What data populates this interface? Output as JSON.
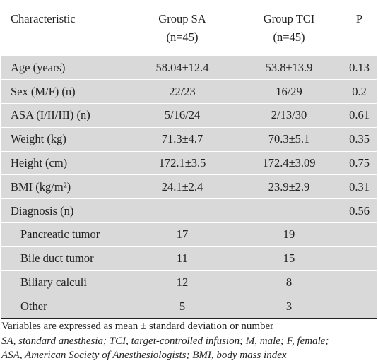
{
  "table": {
    "headers": {
      "characteristic": "Characteristic",
      "group_sa": "Group SA",
      "group_sa_n": "(n=45)",
      "group_tci": "Group TCI",
      "group_tci_n": "(n=45)",
      "p": "P"
    },
    "rows": [
      {
        "label": "Age (years)",
        "sa": "58.04±12.4",
        "tci": "53.8±13.9",
        "p": "0.13"
      },
      {
        "label": "Sex (M/F) (n)",
        "sa": "22/23",
        "tci": "16/29",
        "p": "0.2"
      },
      {
        "label": "ASA (I/II/III) (n)",
        "sa": "5/16/24",
        "tci": "2/13/30",
        "p": "0.61"
      },
      {
        "label": "Weight (kg)",
        "sa": "71.3±4.7",
        "tci": "70.3±5.1",
        "p": "0.35"
      },
      {
        "label": "Height (cm)",
        "sa": "172.1±3.5",
        "tci": "172.4±3.09",
        "p": "0.75"
      },
      {
        "label": "BMI (kg/m²)",
        "sa": "24.1±2.4",
        "tci": "23.9±2.9",
        "p": "0.31"
      },
      {
        "label": "Diagnosis (n)",
        "sa": "",
        "tci": "",
        "p": "0.56"
      },
      {
        "label": "Pancreatic tumor",
        "sa": "17",
        "tci": "19",
        "p": ""
      },
      {
        "label": "Bile duct tumor",
        "sa": "11",
        "tci": "15",
        "p": ""
      },
      {
        "label": "Biliary calculi",
        "sa": "12",
        "tci": "8",
        "p": ""
      },
      {
        "label": "Other",
        "sa": "5",
        "tci": "3",
        "p": ""
      }
    ]
  },
  "footnote": {
    "line1": "Variables are expressed as mean ± standard deviation or number",
    "line2": "SA, standard anesthesia; TCI, target-controlled infusion; M, male; F, female;",
    "line3": "ASA, American Society of Anesthesiologists; BMI, body mass index"
  },
  "colors": {
    "row_shade": "#d9d9d9",
    "rule": "#222222",
    "text": "#222222"
  }
}
